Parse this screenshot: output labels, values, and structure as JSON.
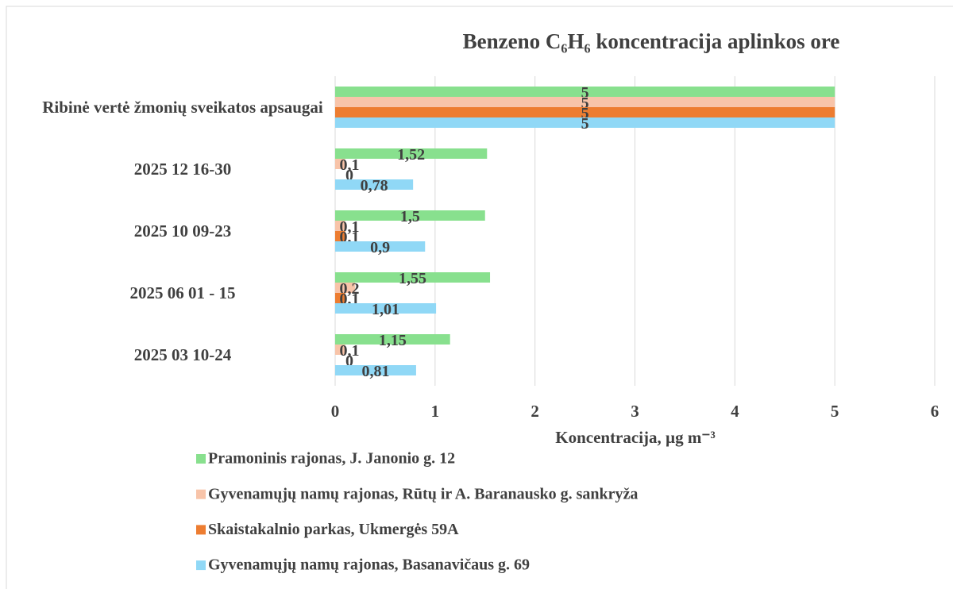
{
  "chart_data": {
    "type": "hbar",
    "title": "Benzeno C₆H₆ koncentracija aplinkos ore",
    "xlabel": "Koncentracija, µg m⁻³",
    "categories": [
      "2025 03 10-24",
      "2025 06 01 - 15",
      "2025 10 09-23",
      "2025 12 16-30",
      "Ribinė vertė žmonių sveikatos apsaugai"
    ],
    "series": [
      {
        "name": "Pramoninis rajonas, J. Janonio g. 12",
        "color": "#88e08e",
        "values": [
          1.15,
          1.55,
          1.5,
          1.52,
          5
        ],
        "value_labels": [
          "1,15",
          "1,55",
          "1,5",
          "1,52",
          "5"
        ]
      },
      {
        "name": "Gyvenamųjų namų rajonas, Rūtų ir A. Baranausko g. sankryža",
        "color": "#f8c4a9",
        "values": [
          0.1,
          0.2,
          0.1,
          0.1,
          5
        ],
        "value_labels": [
          "0,1",
          "0,2",
          "0,1",
          "0,1",
          "5"
        ]
      },
      {
        "name": "Skaistakalnio parkas, Ukmergės 59A",
        "color": "#ed7d31",
        "values": [
          0,
          0.1,
          0.1,
          0,
          5
        ],
        "value_labels": [
          "0",
          "0,1",
          "0,1",
          "0",
          "5"
        ]
      },
      {
        "name": "Gyvenamųjų namų rajonas, Basanavičaus g. 69",
        "color": "#90d8f6",
        "values": [
          0.81,
          1.01,
          0.9,
          0.78,
          5
        ],
        "value_labels": [
          "0,81",
          "1,01",
          "0,9",
          "0,78",
          "5"
        ]
      }
    ],
    "xlim": [
      0,
      6
    ],
    "xticks": [
      0,
      1,
      2,
      3,
      4,
      5,
      6
    ],
    "grid": true
  }
}
